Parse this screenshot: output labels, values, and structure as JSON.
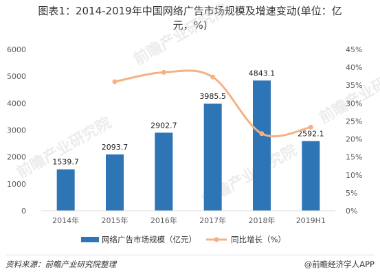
{
  "title": {
    "line1": "图表1：2014-2019年中国网络广告市场规模及增速变动(单位：亿",
    "line2": "元，%)"
  },
  "colors": {
    "bar": "#2E75B6",
    "line": "#F4B183",
    "axis": "#d9d9d9",
    "text": "#595959"
  },
  "chart_data": {
    "type": "bar",
    "categories": [
      "2014年",
      "2015年",
      "2016年",
      "2017年",
      "2018年",
      "2019H1"
    ],
    "series": [
      {
        "name": "网络广告市场规模（亿元）",
        "type": "bar",
        "axis": "left",
        "values": [
          1539.7,
          2093.7,
          2902.7,
          3985.5,
          4843.1,
          2592.1
        ],
        "labels": [
          "1539.7",
          "2093.7",
          "2902.7",
          "3985.5",
          "4843.1",
          "2592.1"
        ]
      },
      {
        "name": "同比增长（%）",
        "type": "line",
        "axis": "right",
        "values": [
          null,
          36.0,
          38.6,
          37.3,
          21.5,
          23.3
        ]
      }
    ],
    "y_left": {
      "min": 0,
      "max": 6000,
      "ticks": [
        0,
        1000,
        2000,
        3000,
        4000,
        5000,
        6000
      ],
      "tick_labels": [
        "0",
        "1000",
        "2000",
        "3000",
        "4000",
        "5000",
        "6000"
      ]
    },
    "y_right": {
      "min": 0,
      "max": 45,
      "ticks": [
        0,
        5,
        10,
        15,
        20,
        25,
        30,
        35,
        40,
        45
      ],
      "tick_labels": [
        "0%",
        "5%",
        "10%",
        "15%",
        "20%",
        "25%",
        "30%",
        "35%",
        "40%",
        "45%"
      ]
    },
    "grid": false,
    "legend": "bottom"
  },
  "footer": {
    "source": "资料来源：前瞻产业研究院整理",
    "credit": "@前瞻经济学人APP"
  },
  "watermark": "前瞻产业研究院"
}
